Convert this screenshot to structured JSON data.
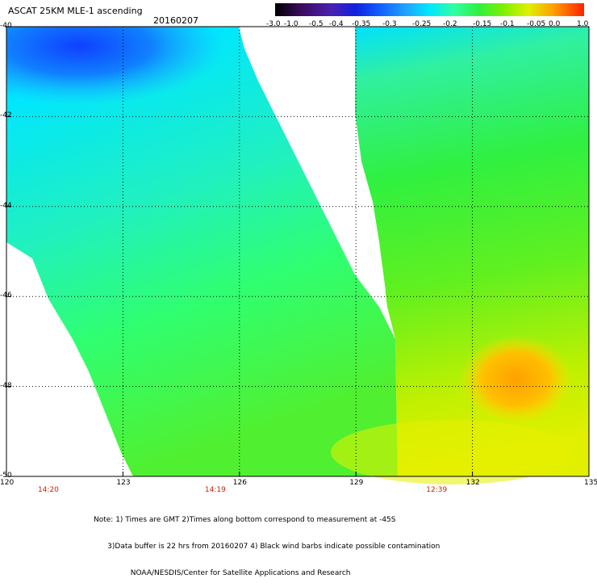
{
  "header": {
    "title": "ASCAT 25KM MLE-1 ascending",
    "date": "20160207"
  },
  "colorbar": {
    "labels": [
      "-3.0",
      "-1.0",
      "-0.5",
      "-0.4",
      "-0.35",
      "-0.3",
      "-0.25",
      "-0.2",
      "-0.15",
      "-0.1",
      "-0.05",
      "0.0",
      "1.0"
    ],
    "colors": [
      "#000000",
      "#3a0a5a",
      "#4a20b0",
      "#1020e0",
      "#1060ff",
      "#20a0ff",
      "#00e0ff",
      "#30ff80",
      "#40e020",
      "#a0f000",
      "#f0f000",
      "#ff9000",
      "#ff2000"
    ]
  },
  "map": {
    "latitude_labels": [
      "-40",
      "-42",
      "-44",
      "-46",
      "-48",
      "-50"
    ],
    "longitude_labels": [
      "120",
      "123",
      "126",
      "129",
      "132",
      "135"
    ],
    "lat_values": [
      -40,
      -42,
      -44,
      -46,
      -48,
      -50
    ],
    "lon_values": [
      120,
      123,
      126,
      129,
      132,
      135
    ],
    "lon_range": [
      120,
      135
    ],
    "lat_range": [
      -40,
      -50
    ],
    "time_labels": [
      {
        "text": "14:20",
        "lon": 121.1
      },
      {
        "text": "14:19",
        "lon": 125.4
      },
      {
        "text": "12:39",
        "lon": 131.1
      }
    ],
    "gridlines": true
  },
  "notes": {
    "line1": "Note: 1) Times are GMT 2)Times along bottom correspond to measurement at -45S",
    "line2": "      3)Data buffer is 22 hrs from 20160207 4) Black wind barbs indicate possible contamination",
    "line3": "                NOAA/NESDIS/Center for Satellite Applications and Research"
  }
}
